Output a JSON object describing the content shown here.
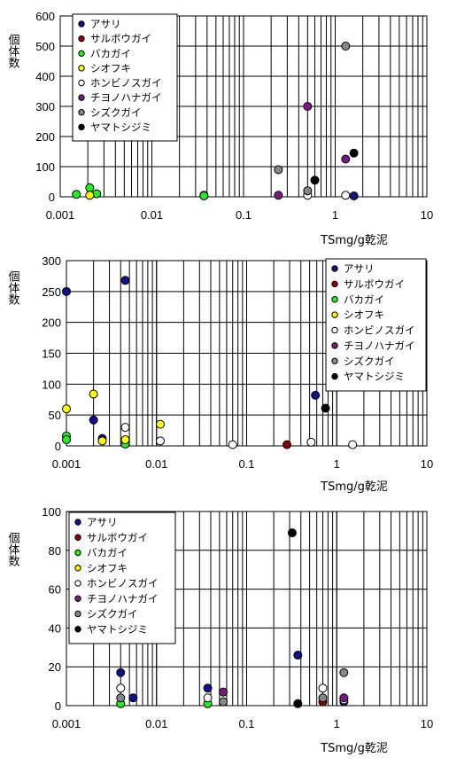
{
  "colors": {
    "アサリ": "#10108a",
    "サルボウガイ": "#8b0000",
    "バカガイ": "#22ee22",
    "シオフキ": "#ffff00",
    "ホンビノスガイ": "#ffffff",
    "チヨノハナガイ": "#7a1a80",
    "シズクガイ": "#888888",
    "ヤマトシジミ": "#000000"
  },
  "chart_data": [
    {
      "type": "scatter",
      "xscale": "log",
      "xlim": [
        0.001,
        10
      ],
      "ylim": [
        0,
        600
      ],
      "yticks": [
        0,
        100,
        200,
        300,
        400,
        500,
        600
      ],
      "xtick_labels": [
        "0.001",
        "0.01",
        "0.1",
        "1",
        "10"
      ],
      "ylabel": "個体数",
      "xlabel": "TSmg/g乾泥",
      "legend_position": "top-left",
      "series": [
        {
          "name": "アサリ",
          "points": [
            [
              0.037,
              5
            ],
            [
              1.6,
              3
            ]
          ]
        },
        {
          "name": "サルボウガイ",
          "points": []
        },
        {
          "name": "バカガイ",
          "points": [
            [
              0.0015,
              8
            ],
            [
              0.0021,
              30
            ],
            [
              0.0025,
              10
            ],
            [
              0.037,
              3
            ]
          ]
        },
        {
          "name": "シオフキ",
          "points": [
            [
              0.0021,
              5
            ]
          ]
        },
        {
          "name": "ホンビノスガイ",
          "points": [
            [
              0.5,
              5
            ],
            [
              1.3,
              5
            ]
          ]
        },
        {
          "name": "チヨノハナガイ",
          "points": [
            [
              0.24,
              5
            ],
            [
              0.5,
              300
            ],
            [
              1.3,
              125
            ]
          ]
        },
        {
          "name": "シズクガイ",
          "points": [
            [
              0.24,
              90
            ],
            [
              0.5,
              20
            ],
            [
              1.3,
              500
            ]
          ]
        },
        {
          "name": "ヤマトシジミ",
          "points": [
            [
              0.6,
              55
            ],
            [
              1.6,
              145
            ]
          ]
        }
      ]
    },
    {
      "type": "scatter",
      "xscale": "log",
      "xlim": [
        0.001,
        10
      ],
      "ylim": [
        0,
        300
      ],
      "yticks": [
        0,
        50,
        100,
        150,
        200,
        250,
        300
      ],
      "xtick_labels": [
        "0.001",
        "0.01",
        "0.1",
        "1",
        "10"
      ],
      "ylabel": "個体数",
      "xlabel": "TSmg/g乾泥",
      "legend_position": "top-right",
      "series": [
        {
          "name": "アサリ",
          "points": [
            [
              0.001,
              250
            ],
            [
              0.002,
              42
            ],
            [
              0.0025,
              12
            ],
            [
              0.0045,
              268
            ],
            [
              0.58,
              82
            ]
          ]
        },
        {
          "name": "サルボウガイ",
          "points": [
            [
              0.28,
              2
            ]
          ]
        },
        {
          "name": "バカガイ",
          "points": [
            [
              0.001,
              16
            ],
            [
              0.001,
              10
            ],
            [
              0.0045,
              3
            ]
          ]
        },
        {
          "name": "シオフキ",
          "points": [
            [
              0.001,
              60
            ],
            [
              0.002,
              84
            ],
            [
              0.0025,
              8
            ],
            [
              0.0045,
              10
            ],
            [
              0.011,
              35
            ]
          ]
        },
        {
          "name": "ホンビノスガイ",
          "points": [
            [
              0.0045,
              30
            ],
            [
              0.011,
              8
            ],
            [
              0.07,
              2
            ],
            [
              0.52,
              6
            ],
            [
              1.5,
              2
            ]
          ]
        },
        {
          "name": "チヨノハナガイ",
          "points": []
        },
        {
          "name": "シズクガイ",
          "points": []
        },
        {
          "name": "ヤマトシジミ",
          "points": [
            [
              0.75,
              61
            ]
          ]
        }
      ]
    },
    {
      "type": "scatter",
      "xscale": "log",
      "xlim": [
        0.001,
        10
      ],
      "ylim": [
        0,
        100
      ],
      "yticks": [
        0,
        20,
        40,
        60,
        80,
        100
      ],
      "xtick_labels": [
        "0.001",
        "0.01",
        "0.1",
        "1",
        "10"
      ],
      "ylabel": "個体数",
      "xlabel": "TSmg/g乾泥",
      "legend_position": "top-left",
      "series": [
        {
          "name": "アサリ",
          "points": [
            [
              0.004,
              17
            ],
            [
              0.0055,
              4
            ],
            [
              0.037,
              9
            ],
            [
              0.37,
              26
            ],
            [
              1.2,
              2
            ]
          ]
        },
        {
          "name": "サルボウガイ",
          "points": [
            [
              0.7,
              2
            ]
          ]
        },
        {
          "name": "バカガイ",
          "points": [
            [
              0.004,
              1
            ],
            [
              0.037,
              1
            ]
          ]
        },
        {
          "name": "シオフキ",
          "points": []
        },
        {
          "name": "ホンビノスガイ",
          "points": [
            [
              0.004,
              9
            ],
            [
              0.037,
              4
            ],
            [
              0.7,
              9
            ],
            [
              1.2,
              3
            ]
          ]
        },
        {
          "name": "チヨノハナガイ",
          "points": [
            [
              0.055,
              7
            ],
            [
              1.2,
              4
            ]
          ]
        },
        {
          "name": "シズクガイ",
          "points": [
            [
              0.004,
              4
            ],
            [
              0.055,
              2
            ],
            [
              0.7,
              4
            ],
            [
              1.2,
              17
            ]
          ]
        },
        {
          "name": "ヤマトシジミ",
          "points": [
            [
              0.32,
              89
            ],
            [
              0.37,
              1
            ]
          ]
        }
      ]
    }
  ]
}
